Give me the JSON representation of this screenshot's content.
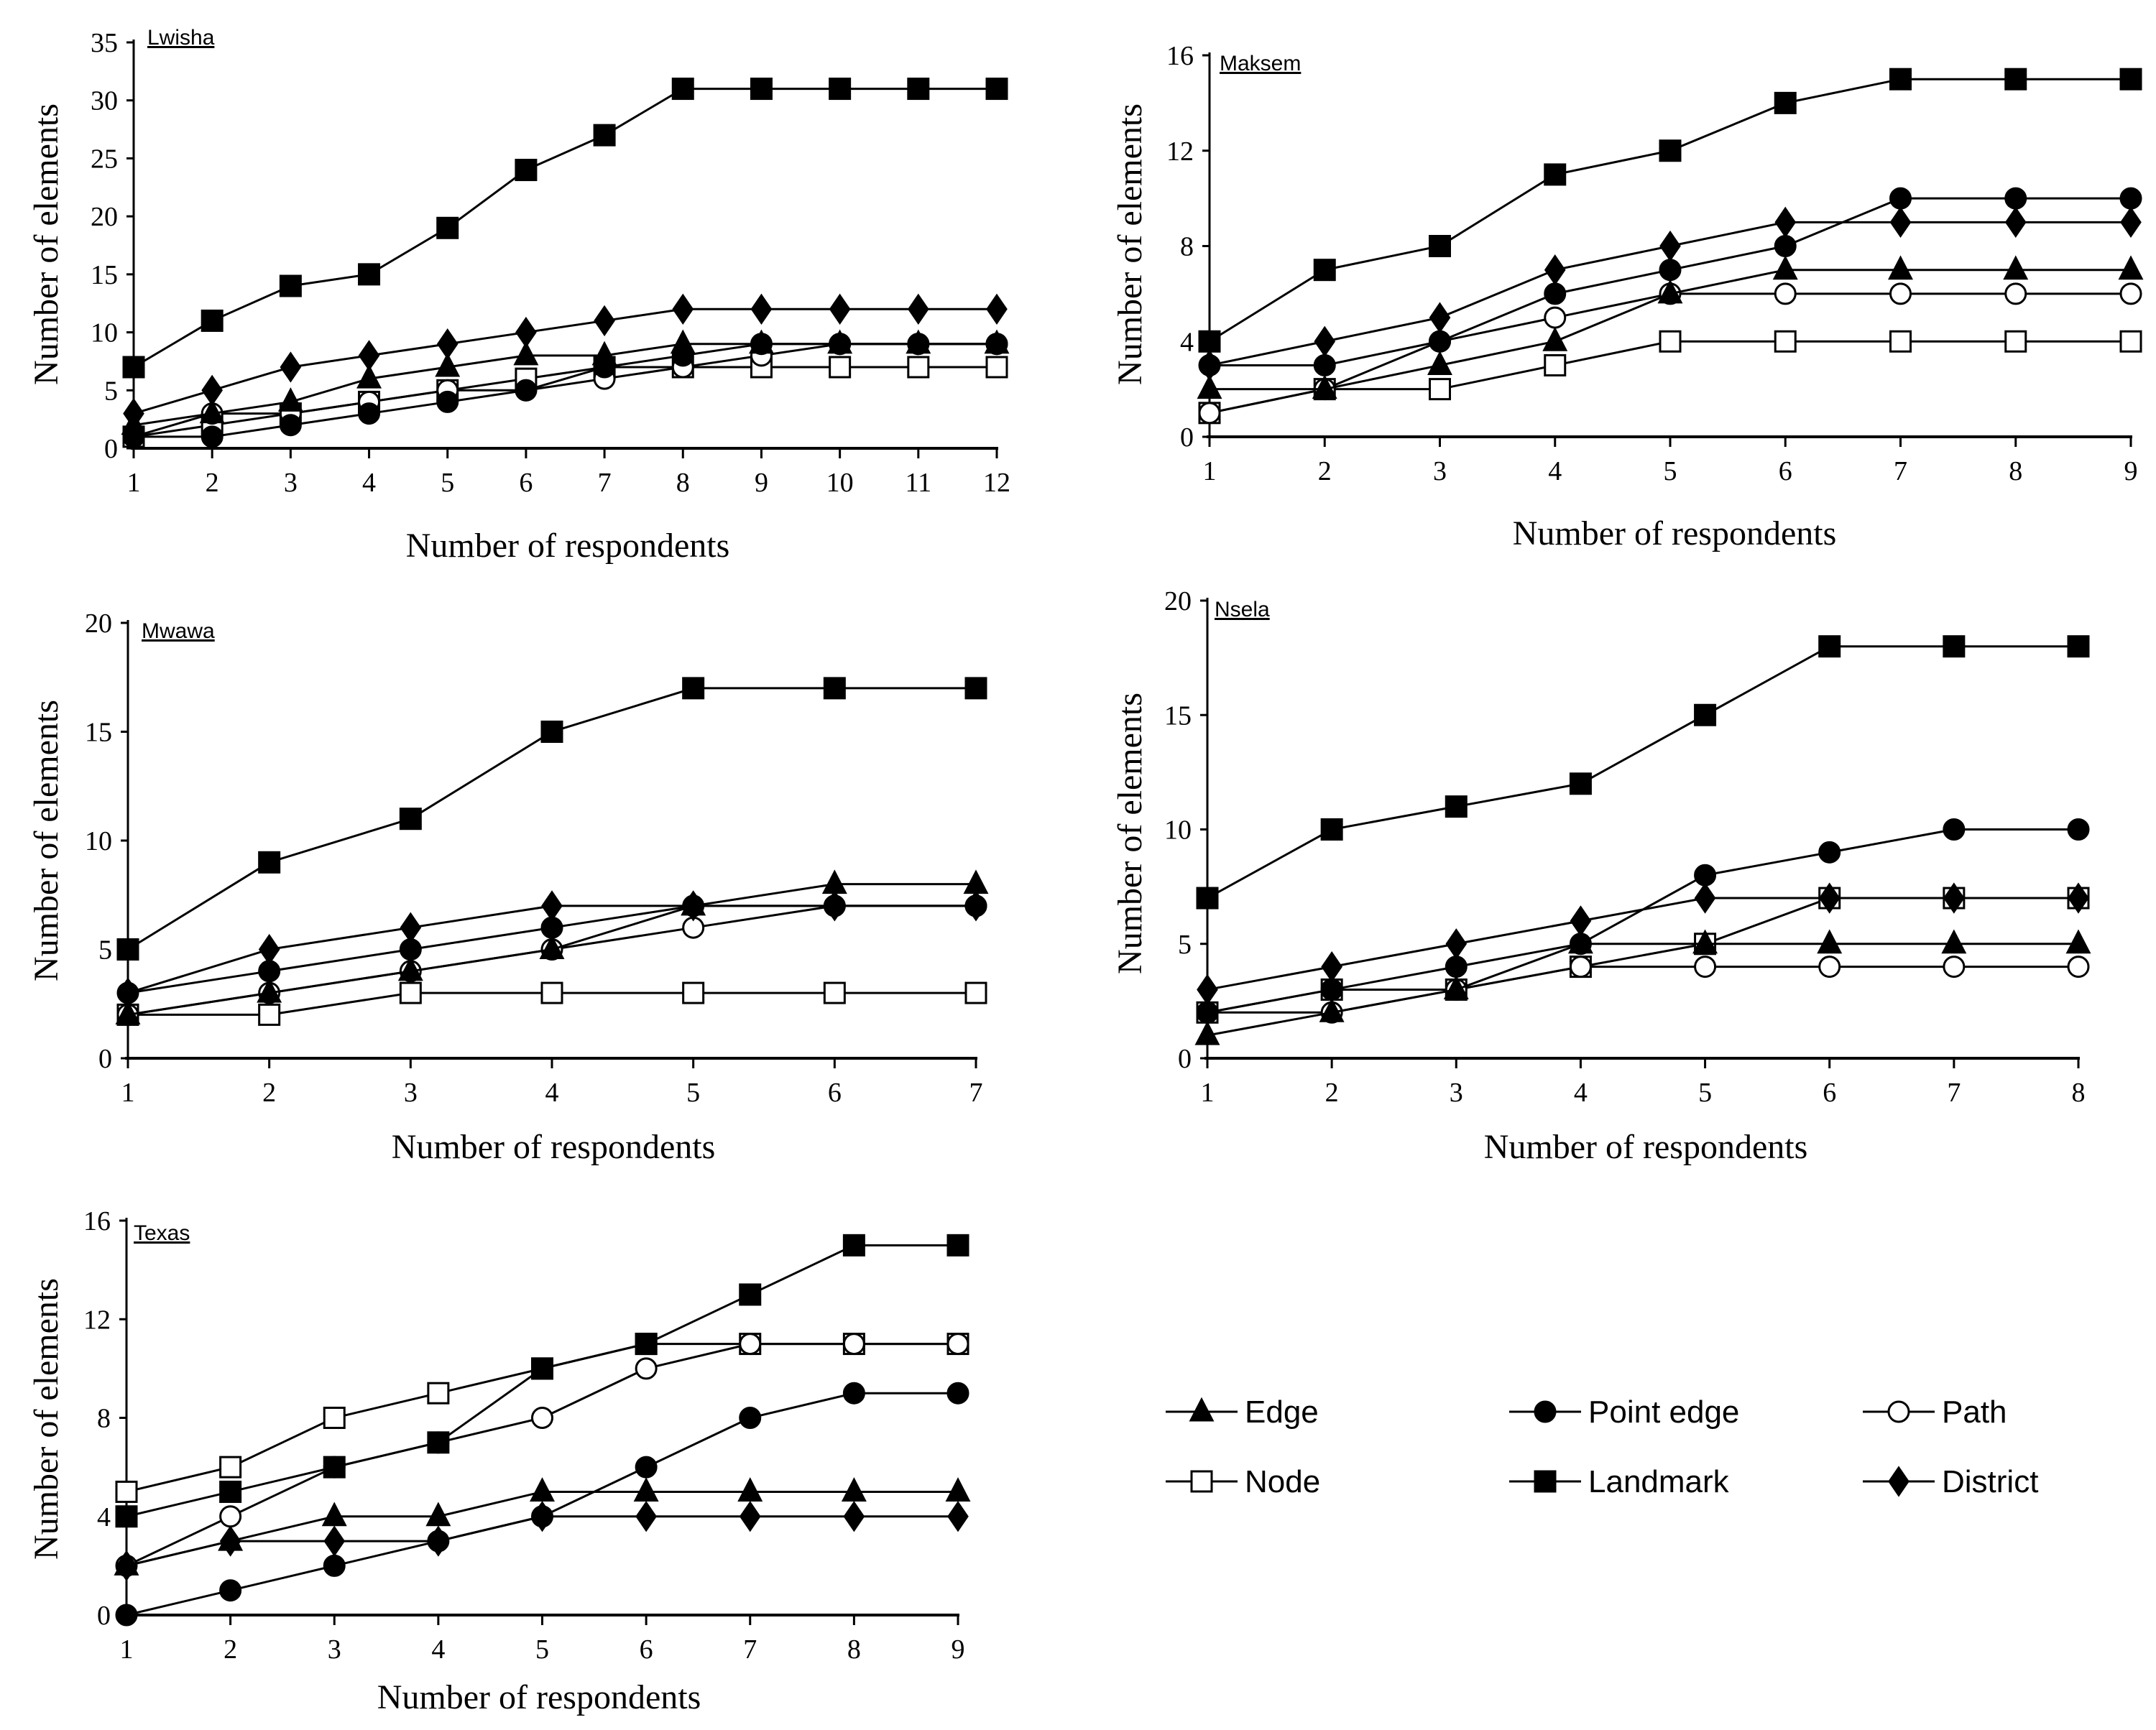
{
  "chart_data": [
    {
      "type": "line",
      "title": "Lwisha",
      "xlabel": "Number of respondents",
      "ylabel": "Number of elements",
      "x": [
        1,
        2,
        3,
        4,
        5,
        6,
        7,
        8,
        9,
        10,
        11,
        12
      ],
      "ylim": [
        0,
        35
      ],
      "yticks": [
        0,
        5,
        10,
        15,
        20,
        25,
        30,
        35
      ],
      "series": [
        {
          "name": "Edge",
          "values": [
            2,
            3,
            4,
            6,
            7,
            8,
            8,
            9,
            9,
            9,
            9,
            9
          ]
        },
        {
          "name": "Point edge",
          "values": [
            1,
            1,
            2,
            3,
            4,
            5,
            7,
            8,
            9,
            9,
            9,
            9
          ]
        },
        {
          "name": "Path",
          "values": [
            1,
            3,
            3,
            4,
            5,
            5,
            6,
            7,
            8,
            9,
            9,
            9
          ]
        },
        {
          "name": "Node",
          "values": [
            1,
            2,
            3,
            4,
            5,
            6,
            7,
            7,
            7,
            7,
            7,
            7
          ]
        },
        {
          "name": "Landmark",
          "values": [
            7,
            11,
            14,
            15,
            19,
            24,
            27,
            31,
            31,
            31,
            31,
            31
          ]
        },
        {
          "name": "District",
          "values": [
            3,
            5,
            7,
            8,
            9,
            10,
            11,
            12,
            12,
            12,
            12,
            12
          ]
        }
      ]
    },
    {
      "type": "line",
      "title": "Maksem",
      "xlabel": "Number of respondents",
      "ylabel": "Number of elements",
      "x": [
        1,
        2,
        3,
        4,
        5,
        6,
        7,
        8,
        9
      ],
      "ylim": [
        0,
        16
      ],
      "yticks": [
        0,
        4,
        8,
        12,
        16
      ],
      "series": [
        {
          "name": "Edge",
          "values": [
            2,
            2,
            3,
            4,
            6,
            7,
            7,
            7,
            7
          ]
        },
        {
          "name": "Point edge",
          "values": [
            3,
            3,
            4,
            6,
            7,
            8,
            10,
            10,
            10
          ]
        },
        {
          "name": "Path",
          "values": [
            1,
            2,
            4,
            5,
            6,
            6,
            6,
            6,
            6
          ]
        },
        {
          "name": "Node",
          "values": [
            1,
            2,
            2,
            3,
            4,
            4,
            4,
            4,
            4
          ]
        },
        {
          "name": "Landmark",
          "values": [
            4,
            7,
            8,
            11,
            12,
            14,
            15,
            15,
            15
          ]
        },
        {
          "name": "District",
          "values": [
            3,
            4,
            5,
            7,
            8,
            9,
            9,
            9,
            9
          ]
        }
      ]
    },
    {
      "type": "line",
      "title": "Mwawa",
      "xlabel": "Number of respondents",
      "ylabel": "Number of elements",
      "x": [
        1,
        2,
        3,
        4,
        5,
        6,
        7
      ],
      "ylim": [
        0,
        20
      ],
      "yticks": [
        0,
        5,
        10,
        15,
        20
      ],
      "series": [
        {
          "name": "Edge",
          "values": [
            2,
            3,
            4,
            5,
            7,
            8,
            8
          ]
        },
        {
          "name": "Point edge",
          "values": [
            3,
            4,
            5,
            6,
            7,
            7,
            7
          ]
        },
        {
          "name": "Path",
          "values": [
            2,
            3,
            4,
            5,
            6,
            7,
            7
          ]
        },
        {
          "name": "Node",
          "values": [
            2,
            2,
            3,
            3,
            3,
            3,
            3
          ]
        },
        {
          "name": "Landmark",
          "values": [
            5,
            9,
            11,
            15,
            17,
            17,
            17
          ]
        },
        {
          "name": "District",
          "values": [
            3,
            5,
            6,
            7,
            7,
            7,
            7
          ]
        }
      ]
    },
    {
      "type": "line",
      "title": "Nsela",
      "xlabel": "Number of respondents",
      "ylabel": "Number of elements",
      "x": [
        1,
        2,
        3,
        4,
        5,
        6,
        7,
        8
      ],
      "ylim": [
        0,
        20
      ],
      "yticks": [
        0,
        5,
        10,
        15,
        20
      ],
      "series": [
        {
          "name": "Edge",
          "values": [
            1,
            2,
            3,
            5,
            5,
            5,
            5,
            5
          ]
        },
        {
          "name": "Point edge",
          "values": [
            2,
            3,
            4,
            5,
            8,
            9,
            10,
            10
          ]
        },
        {
          "name": "Path",
          "values": [
            2,
            2,
            3,
            4,
            4,
            4,
            4,
            4
          ]
        },
        {
          "name": "Node",
          "values": [
            2,
            3,
            3,
            4,
            5,
            7,
            7,
            7
          ]
        },
        {
          "name": "Landmark",
          "values": [
            7,
            10,
            11,
            12,
            15,
            18,
            18,
            18
          ]
        },
        {
          "name": "District",
          "values": [
            3,
            4,
            5,
            6,
            7,
            7,
            7,
            7
          ]
        }
      ]
    },
    {
      "type": "line",
      "title": "Texas",
      "xlabel": "Number of respondents",
      "ylabel": "Number of elements",
      "x": [
        1,
        2,
        3,
        4,
        5,
        6,
        7,
        8,
        9
      ],
      "ylim": [
        0,
        16
      ],
      "yticks": [
        0,
        4,
        8,
        12,
        16
      ],
      "series": [
        {
          "name": "Edge",
          "values": [
            2,
            3,
            4,
            4,
            5,
            5,
            5,
            5,
            5
          ]
        },
        {
          "name": "Point edge",
          "values": [
            0,
            1,
            2,
            3,
            4,
            6,
            8,
            9,
            9
          ]
        },
        {
          "name": "Path",
          "values": [
            2,
            4,
            6,
            7,
            8,
            10,
            11,
            11,
            11
          ]
        },
        {
          "name": "Node",
          "values": [
            5,
            6,
            8,
            9,
            10,
            11,
            11,
            11,
            11
          ]
        },
        {
          "name": "Landmark",
          "values": [
            4,
            5,
            6,
            7,
            10,
            11,
            13,
            15,
            15
          ]
        },
        {
          "name": "District",
          "values": [
            2,
            3,
            3,
            3,
            4,
            4,
            4,
            4,
            4
          ]
        }
      ]
    }
  ],
  "legend": {
    "placement": "bottom-right",
    "entries": [
      {
        "label": "Edge",
        "marker": "triangle-filled"
      },
      {
        "label": "Point edge",
        "marker": "circle-filled"
      },
      {
        "label": "Path",
        "marker": "circle-open"
      },
      {
        "label": "Node",
        "marker": "square-open"
      },
      {
        "label": "Landmark",
        "marker": "square-filled"
      },
      {
        "label": "District",
        "marker": "diamond-filled"
      }
    ]
  }
}
